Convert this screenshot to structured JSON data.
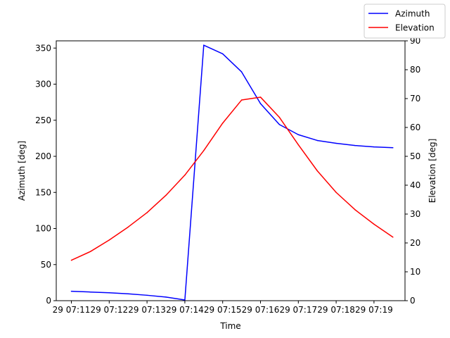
{
  "chart_data": {
    "type": "line",
    "xlabel": "Time",
    "ylabel": "Azimuth [deg]",
    "ylabel_right": "Elevation [deg]",
    "x_ticks": [
      "29 07:11",
      "29 07:12",
      "29 07:13",
      "29 07:14",
      "29 07:15",
      "29 07:16",
      "29 07:17",
      "29 07:18",
      "29 07:19"
    ],
    "xlim": [
      -0.4,
      8.82
    ],
    "ylim": [
      0,
      360
    ],
    "ylim_right": [
      0,
      90
    ],
    "y_ticks": [
      0,
      50,
      100,
      150,
      200,
      250,
      300,
      350
    ],
    "y_ticks_right": [
      0,
      10,
      20,
      30,
      40,
      50,
      60,
      70,
      80,
      90
    ],
    "grid": false,
    "legend_position": "top-right, outside plot area",
    "x": [
      0,
      0.5,
      1,
      1.5,
      2,
      2.5,
      3,
      3.5,
      4,
      4.5,
      5,
      5.5,
      6,
      6.5,
      7,
      7.5,
      8,
      8.5
    ],
    "series": [
      {
        "name": "Azimuth",
        "color": "#0000ff",
        "axis": "left",
        "values": [
          13,
          12,
          11,
          9.5,
          7.5,
          5,
          1,
          354,
          342,
          317,
          273,
          244,
          230,
          222,
          218,
          215,
          213,
          212
        ]
      },
      {
        "name": "Elevation",
        "color": "#ff0000",
        "axis": "right",
        "values": [
          14,
          17,
          21,
          25.5,
          30.5,
          36.5,
          43.5,
          52,
          61.5,
          69.5,
          70.5,
          63.5,
          54,
          45,
          37.5,
          31.5,
          26.5,
          22
        ]
      }
    ]
  }
}
